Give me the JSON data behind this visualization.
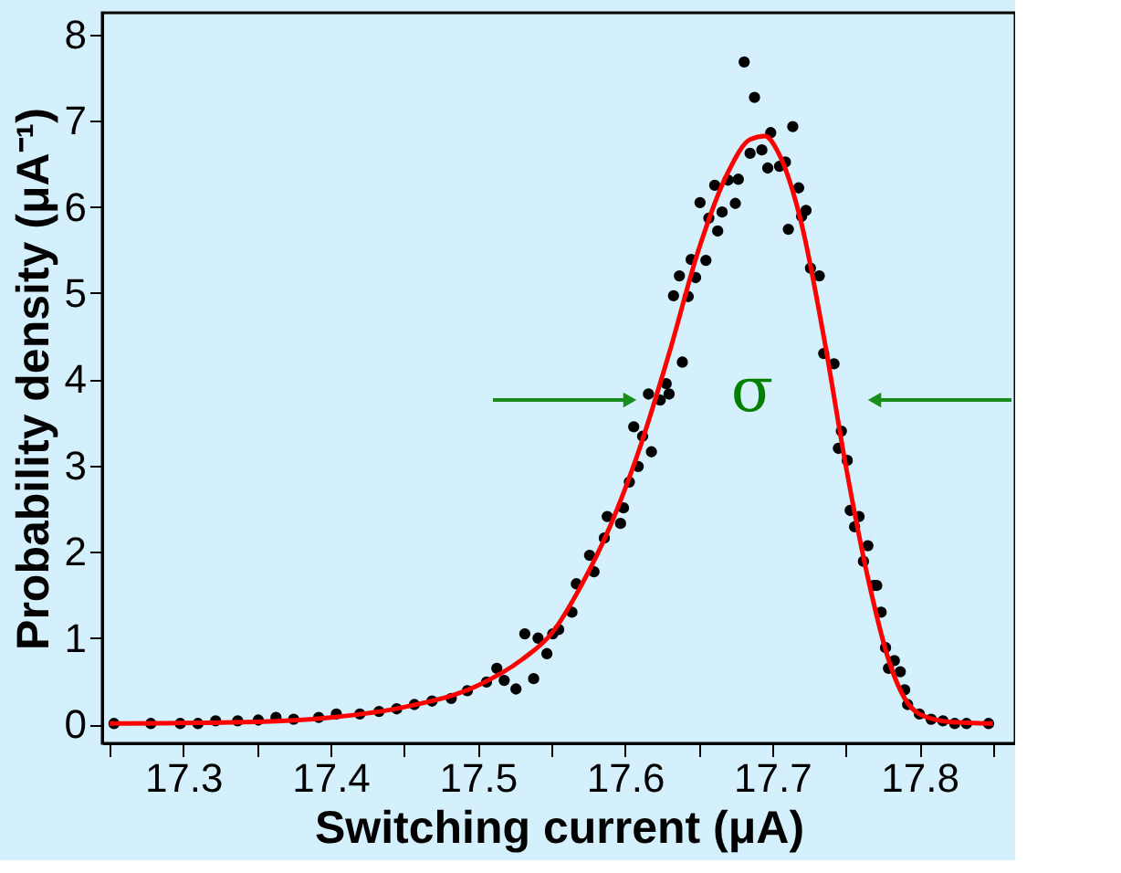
{
  "chart_data": {
    "type": "scatter",
    "xlabel": "Switching current (μA)",
    "ylabel": "Probability density (μA⁻¹)",
    "xlim": [
      17.245,
      17.865
    ],
    "ylim": [
      -0.22,
      8.25
    ],
    "xticks": [
      {
        "value": 17.25,
        "label": null
      },
      17.3,
      {
        "value": 17.35,
        "label": null
      },
      17.4,
      {
        "value": 17.45,
        "label": null
      },
      17.5,
      {
        "value": 17.55,
        "label": null
      },
      17.6,
      {
        "value": 17.65,
        "label": null
      },
      17.7,
      {
        "value": 17.75,
        "label": null
      },
      17.8,
      {
        "value": 17.85,
        "label": null
      }
    ],
    "yticks": [
      0,
      1,
      2,
      3,
      4,
      5,
      6,
      7,
      8
    ],
    "grid": false,
    "annotations": [
      "σ"
    ],
    "series": [
      {
        "marker": "circle",
        "color": "#000000",
        "x": [
          17.681,
          17.688,
          17.714,
          17.699,
          17.693,
          17.685,
          17.697,
          17.705,
          17.709,
          17.677,
          17.67,
          17.661,
          17.675,
          17.651,
          17.666,
          17.657,
          17.663,
          17.711,
          17.718,
          17.723,
          17.72,
          17.645,
          17.655,
          17.637,
          17.648,
          17.633,
          17.643,
          17.726,
          17.732,
          17.639,
          17.735,
          17.742,
          17.628,
          17.616,
          17.624,
          17.63,
          17.606,
          17.612,
          17.618,
          17.609,
          17.603,
          17.599,
          17.588,
          17.597,
          17.586,
          17.576,
          17.579,
          17.567,
          17.564,
          17.555,
          17.551,
          17.532,
          17.538,
          17.547,
          17.541,
          17.526,
          17.518,
          17.513,
          17.506,
          17.493,
          17.482,
          17.469,
          17.457,
          17.445,
          17.433,
          17.42,
          17.404,
          17.392,
          17.375,
          17.363,
          17.351,
          17.337,
          17.322,
          17.31,
          17.298,
          17.278,
          17.253,
          17.832,
          17.747,
          17.745,
          17.751,
          17.753,
          17.759,
          17.756,
          17.765,
          17.762,
          17.769,
          17.771,
          17.774,
          17.777,
          17.783,
          17.779,
          17.787,
          17.79,
          17.792,
          17.8,
          17.808,
          17.816,
          17.824,
          17.847
        ],
        "values": [
          7.68,
          7.27,
          6.93,
          6.86,
          6.66,
          6.62,
          6.45,
          6.47,
          6.52,
          6.32,
          6.31,
          6.25,
          6.04,
          6.05,
          5.94,
          5.87,
          5.72,
          5.74,
          6.22,
          5.96,
          5.89,
          5.39,
          5.38,
          5.2,
          5.18,
          4.97,
          4.96,
          5.29,
          5.2,
          4.2,
          4.3,
          4.18,
          3.95,
          3.83,
          3.76,
          3.83,
          3.45,
          3.34,
          3.16,
          2.99,
          2.81,
          2.51,
          2.41,
          2.33,
          2.16,
          1.96,
          1.77,
          1.63,
          1.3,
          1.1,
          1.05,
          1.05,
          0.53,
          0.82,
          1.0,
          0.41,
          0.51,
          0.65,
          0.49,
          0.39,
          0.3,
          0.27,
          0.23,
          0.18,
          0.15,
          0.12,
          0.12,
          0.08,
          0.06,
          0.08,
          0.05,
          0.04,
          0.04,
          0.01,
          0.01,
          0.01,
          0.01,
          0.01,
          3.4,
          3.2,
          3.06,
          2.48,
          2.41,
          2.29,
          2.07,
          1.89,
          1.61,
          1.61,
          1.3,
          0.89,
          0.74,
          0.65,
          0.61,
          0.4,
          0.23,
          0.12,
          0.06,
          0.04,
          0.01,
          0.01
        ]
      },
      {
        "type": "line",
        "color": "#ff0000",
        "x": [
          17.25,
          17.35,
          17.4,
          17.45,
          17.5,
          17.53,
          17.55,
          17.57,
          17.59,
          17.61,
          17.63,
          17.65,
          17.67,
          17.685,
          17.695,
          17.705,
          17.72,
          17.735,
          17.75,
          17.765,
          17.78,
          17.79,
          17.8,
          17.82,
          17.85
        ],
        "values": [
          0.01,
          0.03,
          0.08,
          0.2,
          0.45,
          0.75,
          1.05,
          1.6,
          2.3,
          3.2,
          4.3,
          5.5,
          6.4,
          6.78,
          6.82,
          6.6,
          5.8,
          4.5,
          3.0,
          1.7,
          0.7,
          0.3,
          0.12,
          0.03,
          0.01
        ]
      }
    ]
  }
}
